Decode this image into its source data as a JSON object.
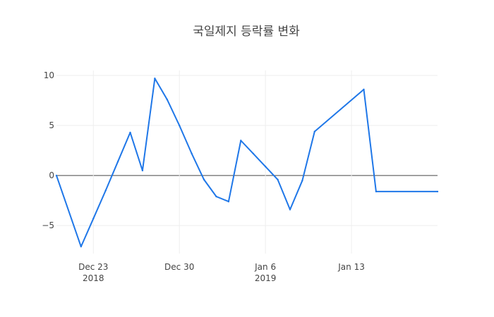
{
  "chart_data": {
    "type": "line",
    "title": "국일제지 등락률 변화",
    "xlabel": "",
    "ylabel": "",
    "xlim": [
      "2018-12-20",
      "2019-01-20"
    ],
    "ylim": [
      -7.8,
      10.5
    ],
    "grid": true,
    "y_ticks": [
      {
        "value": 10,
        "label": "10"
      },
      {
        "value": 5,
        "label": "5"
      },
      {
        "value": 0,
        "label": "0"
      },
      {
        "value": -5,
        "label": "−5"
      }
    ],
    "x_ticks": [
      {
        "date": "2018-12-23",
        "label": "Dec 23",
        "sublabel": "2018"
      },
      {
        "date": "2018-12-30",
        "label": "Dec 30",
        "sublabel": ""
      },
      {
        "date": "2019-01-06",
        "label": "Jan 6",
        "sublabel": "2019"
      },
      {
        "date": "2019-01-13",
        "label": "Jan 13",
        "sublabel": ""
      }
    ],
    "series": [
      {
        "color": "#1f77e8",
        "x": [
          "2018-12-20",
          "2018-12-22",
          "2018-12-23",
          "2018-12-24",
          "2018-12-25",
          "2018-12-26",
          "2018-12-27",
          "2018-12-28",
          "2018-12-29",
          "2018-12-30",
          "2018-12-31",
          "2019-01-01",
          "2019-01-02",
          "2019-01-03",
          "2019-01-04",
          "2019-01-05",
          "2019-01-06",
          "2019-01-07",
          "2019-01-08",
          "2019-01-09",
          "2019-01-10",
          "2019-01-14",
          "2019-01-15",
          "2019-01-20"
        ],
        "y": [
          0.0,
          -7.1,
          -4.3,
          -1.5,
          1.4,
          4.3,
          0.5,
          9.7,
          7.6,
          5.0,
          2.2,
          -0.4,
          -2.1,
          -2.6,
          3.5,
          2.2,
          0.9,
          -0.4,
          -3.4,
          -0.5,
          4.4,
          8.6,
          -1.6,
          -1.6
        ]
      }
    ]
  }
}
